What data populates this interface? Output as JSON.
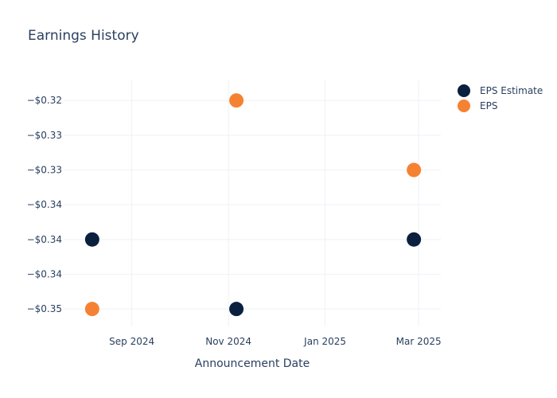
{
  "chart_data": {
    "type": "scatter",
    "title": "Earnings History",
    "xlabel": "Announcement Date",
    "ylabel": "",
    "x_ticks": [
      {
        "date": "2024-09-01",
        "label": "Sep 2024"
      },
      {
        "date": "2024-11-01",
        "label": "Nov 2024"
      },
      {
        "date": "2025-01-01",
        "label": "Jan 2025"
      },
      {
        "date": "2025-03-01",
        "label": "Mar 2025"
      }
    ],
    "xlim": [
      "2024-07-20",
      "2025-03-15"
    ],
    "y_ticks": [
      {
        "value": -0.32,
        "label": "−$0.32"
      },
      {
        "value": -0.325,
        "label": "−$0.33"
      },
      {
        "value": -0.33,
        "label": "−$0.33"
      },
      {
        "value": -0.335,
        "label": "−$0.34"
      },
      {
        "value": -0.34,
        "label": "−$0.34"
      },
      {
        "value": -0.345,
        "label": "−$0.34"
      },
      {
        "value": -0.35,
        "label": "−$0.35"
      }
    ],
    "ylim": [
      -0.3525,
      -0.317
    ],
    "grid": true,
    "legend": "top-right",
    "series": [
      {
        "name": "EPS Estimate",
        "color": "#0b1f3f",
        "points": [
          {
            "x": "2024-08-07",
            "y": -0.34
          },
          {
            "x": "2024-11-06",
            "y": -0.35
          },
          {
            "x": "2025-02-26",
            "y": -0.34
          }
        ]
      },
      {
        "name": "EPS",
        "color": "#f58233",
        "points": [
          {
            "x": "2024-08-07",
            "y": -0.35
          },
          {
            "x": "2024-11-06",
            "y": -0.32
          },
          {
            "x": "2025-02-26",
            "y": -0.33
          }
        ]
      }
    ]
  }
}
